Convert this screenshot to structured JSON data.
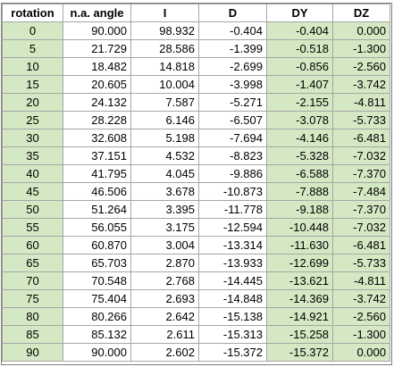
{
  "table": {
    "headers": [
      "rotation",
      "n.a. angle",
      "I",
      "D",
      "DY",
      "DZ"
    ],
    "rows": [
      [
        "0",
        "90.000",
        "98.932",
        "-0.404",
        "-0.404",
        "0.000"
      ],
      [
        "5",
        "21.729",
        "28.586",
        "-1.399",
        "-0.518",
        "-1.300"
      ],
      [
        "10",
        "18.482",
        "14.818",
        "-2.699",
        "-0.856",
        "-2.560"
      ],
      [
        "15",
        "20.605",
        "10.004",
        "-3.998",
        "-1.407",
        "-3.742"
      ],
      [
        "20",
        "24.132",
        "7.587",
        "-5.271",
        "-2.155",
        "-4.811"
      ],
      [
        "25",
        "28.228",
        "6.146",
        "-6.507",
        "-3.078",
        "-5.733"
      ],
      [
        "30",
        "32.608",
        "5.198",
        "-7.694",
        "-4.146",
        "-6.481"
      ],
      [
        "35",
        "37.151",
        "4.532",
        "-8.823",
        "-5.328",
        "-7.032"
      ],
      [
        "40",
        "41.795",
        "4.045",
        "-9.886",
        "-6.588",
        "-7.370"
      ],
      [
        "45",
        "46.506",
        "3.678",
        "-10.873",
        "-7.888",
        "-7.484"
      ],
      [
        "50",
        "51.264",
        "3.395",
        "-11.778",
        "-9.188",
        "-7.370"
      ],
      [
        "55",
        "56.055",
        "3.175",
        "-12.594",
        "-10.448",
        "-7.032"
      ],
      [
        "60",
        "60.870",
        "3.004",
        "-13.314",
        "-11.630",
        "-6.481"
      ],
      [
        "65",
        "65.703",
        "2.870",
        "-13.933",
        "-12.699",
        "-5.733"
      ],
      [
        "70",
        "70.548",
        "2.768",
        "-14.445",
        "-13.621",
        "-4.811"
      ],
      [
        "75",
        "75.404",
        "2.693",
        "-14.848",
        "-14.369",
        "-3.742"
      ],
      [
        "80",
        "80.266",
        "2.642",
        "-15.138",
        "-14.921",
        "-2.560"
      ],
      [
        "85",
        "85.132",
        "2.611",
        "-15.313",
        "-15.258",
        "-1.300"
      ],
      [
        "90",
        "90.000",
        "2.602",
        "-15.372",
        "-15.372",
        "0.000"
      ]
    ],
    "highlight_columns": [
      0,
      4,
      5
    ],
    "highlight_color": "#d5e8c4"
  }
}
